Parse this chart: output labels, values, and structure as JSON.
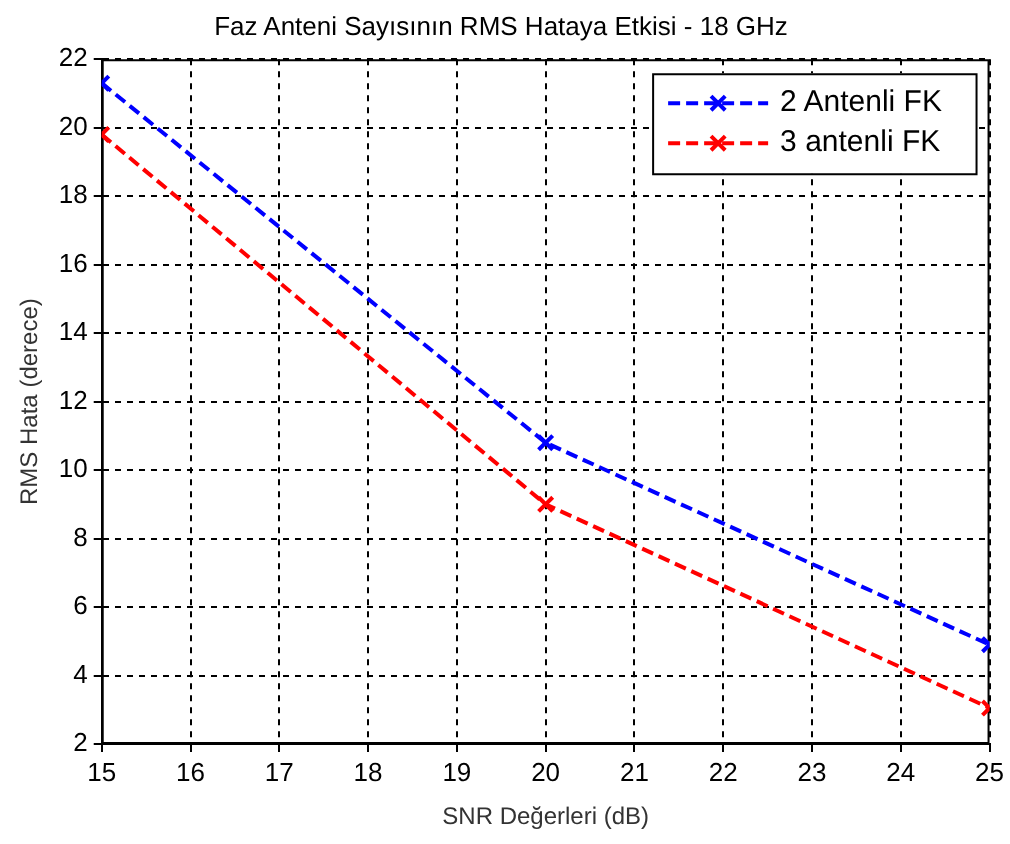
{
  "chart_data": {
    "type": "line",
    "title": "Faz Anteni Sayısının RMS Hataya Etkisi - 18 GHz",
    "xlabel": "SNR Değerleri (dB)",
    "ylabel": "RMS Hata (derece)",
    "x": [
      15,
      20,
      25
    ],
    "series": [
      {
        "name": "2 Antenli FK",
        "color": "#0000ff",
        "values": [
          21.3,
          10.8,
          4.9
        ]
      },
      {
        "name": "3 antenli FK",
        "color": "#ff0000",
        "values": [
          19.8,
          9.0,
          3.05
        ]
      }
    ],
    "xlim": [
      15,
      25
    ],
    "xticks": [
      15,
      16,
      17,
      18,
      19,
      20,
      21,
      22,
      23,
      24,
      25
    ],
    "ylim": [
      2,
      22
    ],
    "yticks": [
      2,
      4,
      6,
      8,
      10,
      12,
      14,
      16,
      18,
      20,
      22
    ],
    "grid": true,
    "legend": "top right",
    "marker": "cross",
    "line_style": "dashed"
  }
}
